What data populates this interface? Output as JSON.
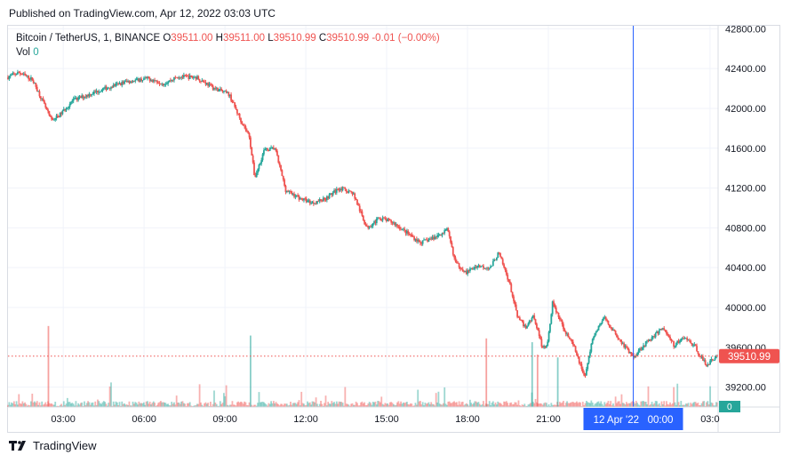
{
  "header": {
    "published": "Published on TradingView.com, Apr 12, 2022 03:03 UTC"
  },
  "legend": {
    "symbol": "Bitcoin / TetherUS, 1, BINANCE",
    "o_label": "O",
    "o": "39511.00",
    "h_label": "H",
    "h": "39511.00",
    "l_label": "L",
    "l": "39510.99",
    "c_label": "C",
    "c": "39510.99",
    "change": "-0.01 (−0.00%)",
    "vol_label": "Vol",
    "vol_value": "0"
  },
  "price_label": "39510.99",
  "vol_tag": "0",
  "crosshair_label": "12 Apr '22   00:00",
  "footer": {
    "brand": "TradingView"
  },
  "colors": {
    "up": "#26a69a",
    "down": "#ef5350",
    "crosshair": "#2962ff",
    "accent_red": "#ef5350"
  },
  "chart_data": {
    "type": "candlestick",
    "symbol": "Bitcoin / TetherUS",
    "interval": "1",
    "exchange": "BINANCE",
    "y_ticks": [
      39200,
      39600,
      40000,
      40400,
      40800,
      41200,
      41600,
      42000,
      42400,
      42800
    ],
    "y_tick_labels": [
      "39200.00",
      "39600.00",
      "40000.00",
      "40400.00",
      "40800.00",
      "41200.00",
      "41600.00",
      "42000.00",
      "42400.00",
      "42800.00"
    ],
    "x_tick_labels": [
      "03:00",
      "06:00",
      "09:00",
      "12:00",
      "15:00",
      "18:00",
      "21:00",
      "03:0"
    ],
    "x_tick_hours": [
      3,
      6,
      9,
      12,
      15,
      18,
      21,
      27
    ],
    "x_range_hours": [
      0.95,
      27.3
    ],
    "ylim": [
      39000,
      42830
    ],
    "last_price": 39510.99,
    "crosshair_hour": 24.15,
    "price_path": [
      [
        0.95,
        42310
      ],
      [
        1.4,
        42360
      ],
      [
        1.9,
        42290
      ],
      [
        2.2,
        42120
      ],
      [
        2.6,
        41880
      ],
      [
        2.9,
        41930
      ],
      [
        3.4,
        42080
      ],
      [
        4.0,
        42140
      ],
      [
        4.7,
        42210
      ],
      [
        5.4,
        42270
      ],
      [
        6.2,
        42300
      ],
      [
        6.8,
        42250
      ],
      [
        7.3,
        42320
      ],
      [
        8.0,
        42310
      ],
      [
        8.6,
        42210
      ],
      [
        9.2,
        42140
      ],
      [
        9.6,
        41900
      ],
      [
        9.95,
        41720
      ],
      [
        10.15,
        41300
      ],
      [
        10.5,
        41580
      ],
      [
        10.9,
        41600
      ],
      [
        11.3,
        41180
      ],
      [
        11.8,
        41100
      ],
      [
        12.3,
        41050
      ],
      [
        12.8,
        41100
      ],
      [
        13.3,
        41200
      ],
      [
        13.8,
        41150
      ],
      [
        14.3,
        40800
      ],
      [
        14.8,
        40900
      ],
      [
        15.3,
        40850
      ],
      [
        15.8,
        40750
      ],
      [
        16.3,
        40650
      ],
      [
        16.8,
        40700
      ],
      [
        17.3,
        40780
      ],
      [
        17.6,
        40450
      ],
      [
        18.0,
        40350
      ],
      [
        18.4,
        40420
      ],
      [
        18.9,
        40400
      ],
      [
        19.2,
        40550
      ],
      [
        19.6,
        40250
      ],
      [
        19.9,
        39900
      ],
      [
        20.2,
        39800
      ],
      [
        20.5,
        39920
      ],
      [
        20.8,
        39620
      ],
      [
        21.0,
        39600
      ],
      [
        21.2,
        40050
      ],
      [
        21.6,
        39800
      ],
      [
        22.0,
        39600
      ],
      [
        22.4,
        39300
      ],
      [
        22.7,
        39700
      ],
      [
        23.1,
        39900
      ],
      [
        23.5,
        39750
      ],
      [
        23.9,
        39600
      ],
      [
        24.2,
        39500
      ],
      [
        24.5,
        39600
      ],
      [
        24.9,
        39700
      ],
      [
        25.3,
        39800
      ],
      [
        25.7,
        39620
      ],
      [
        26.1,
        39700
      ],
      [
        26.5,
        39600
      ],
      [
        26.9,
        39420
      ],
      [
        27.3,
        39510.99
      ]
    ],
    "volume_spikes": [
      [
        2.45,
        0.85
      ],
      [
        9.95,
        0.75
      ],
      [
        18.7,
        0.72
      ],
      [
        20.4,
        0.68
      ],
      [
        20.6,
        0.55
      ],
      [
        21.35,
        0.52
      ]
    ]
  }
}
